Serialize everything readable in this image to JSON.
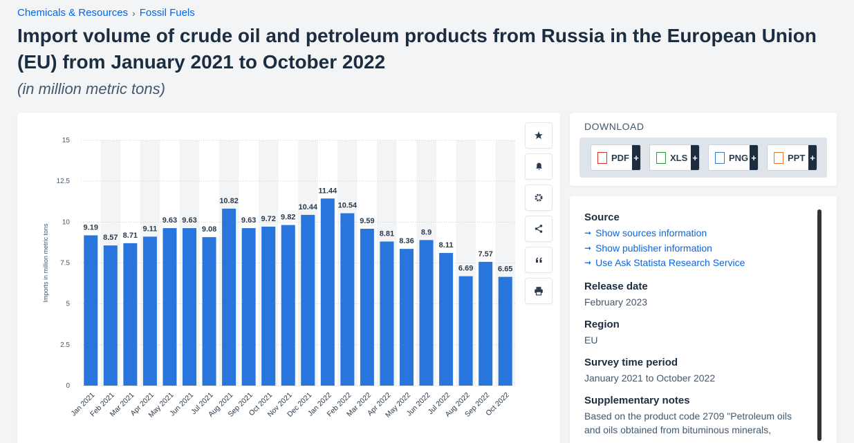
{
  "breadcrumb": {
    "item1": "Chemicals & Resources",
    "sep": "›",
    "item2": "Fossil Fuels"
  },
  "page": {
    "title": "Import volume of crude oil and petroleum products from Russia in the European Union (EU) from January 2021 to October 2022",
    "subtitle": "(in million metric tons)"
  },
  "toolbar": {
    "icons": [
      "star-icon",
      "bell-icon",
      "gear-icon",
      "share-icon",
      "quote-icon",
      "print-icon"
    ]
  },
  "download": {
    "header": "DOWNLOAD",
    "buttons": [
      {
        "label": "PDF",
        "color": "#d9342b"
      },
      {
        "label": "XLS",
        "color": "#2e9a3e"
      },
      {
        "label": "PNG",
        "color": "#2d7cc9"
      },
      {
        "label": "PPT",
        "color": "#e8772e"
      }
    ],
    "plus": "+"
  },
  "info": {
    "source_h": "Source",
    "links": [
      "Show sources information",
      "Show publisher information",
      "Use Ask Statista Research Service"
    ],
    "release_h": "Release date",
    "release_v": "February 2023",
    "region_h": "Region",
    "region_v": "EU",
    "survey_h": "Survey time period",
    "survey_v": "January 2021 to October 2022",
    "notes_h": "Supplementary notes",
    "notes_v": "Based on the product code 2709 \"Petroleum oils and oils obtained from bituminous minerals,"
  },
  "chart_data": {
    "type": "bar",
    "ylabel": "Imports in million metric tons",
    "ylim": [
      0,
      15
    ],
    "yticks": [
      0,
      2.5,
      5,
      7.5,
      10,
      12.5,
      15
    ],
    "ytick_labels": [
      "0",
      "2.5",
      "5",
      "7.5",
      "10",
      "12.5",
      "15"
    ],
    "bar_color": "#2876dd",
    "grid": true,
    "categories": [
      "Jan 2021",
      "Feb 2021",
      "Mar 2021",
      "Apr 2021",
      "May 2021",
      "Jun 2021",
      "Jul 2021",
      "Aug 2021",
      "Sep 2021",
      "Oct 2021",
      "Nov 2021",
      "Dec 2021",
      "Jan 2022",
      "Feb 2022",
      "Mar 2022",
      "Apr 2022",
      "May 2022",
      "Jun 2022",
      "Jul 2022",
      "Aug 2022",
      "Sep 2022",
      "Oct 2022"
    ],
    "values": [
      9.19,
      8.57,
      8.71,
      9.11,
      9.63,
      9.63,
      9.08,
      10.82,
      9.63,
      9.72,
      9.82,
      10.44,
      11.44,
      10.54,
      9.59,
      8.81,
      8.36,
      8.9,
      8.11,
      6.69,
      7.57,
      6.65
    ]
  }
}
